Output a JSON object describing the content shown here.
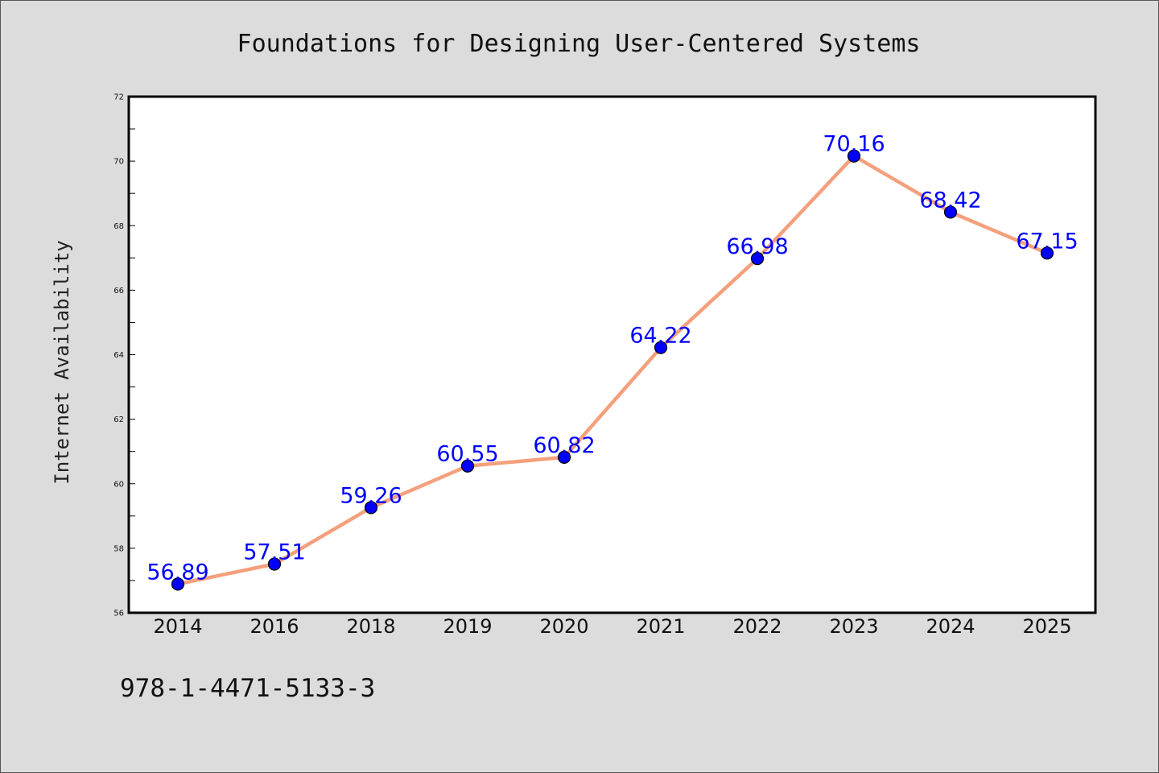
{
  "chart_data": {
    "type": "line",
    "title": "Foundations for Designing User-Centered Systems",
    "xlabel": "",
    "ylabel": "Internet Availability",
    "categories": [
      "2014",
      "2016",
      "2018",
      "2019",
      "2020",
      "2021",
      "2022",
      "2023",
      "2024",
      "2025"
    ],
    "series": [
      {
        "values": [
          56.89,
          57.51,
          59.26,
          60.55,
          60.82,
          64.22,
          66.98,
          70.16,
          68.42,
          67.15
        ],
        "line_color": "#f4a07c",
        "marker_color": "#0000ff"
      }
    ],
    "data_labels": [
      "56.89",
      "57.51",
      "59.26",
      "60.55",
      "60.82",
      "64.22",
      "66.98",
      "70.16",
      "68.42",
      "67.15"
    ],
    "ylim": [
      56,
      72
    ],
    "y_ticks": [
      "56",
      "58",
      "60",
      "62",
      "64",
      "66",
      "68",
      "70",
      "72"
    ],
    "grid": false,
    "legend": "none"
  },
  "footer": {
    "code": "978-1-4471-5133-3"
  },
  "colors": {
    "background": "#dcdcdc",
    "plot_area": "#ffffff",
    "line": "#f4a07c",
    "marker": "#0000ff",
    "data_label": "#0000ff"
  }
}
